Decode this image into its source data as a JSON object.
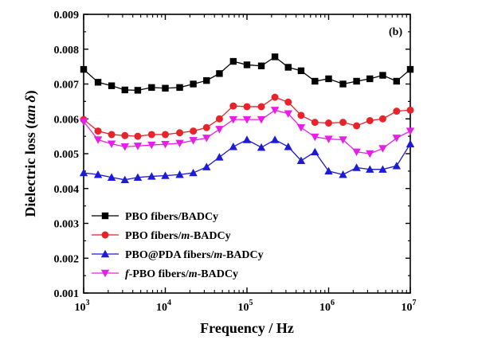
{
  "chart_data": {
    "type": "line",
    "panel_label": "(b)",
    "xlabel": "Frequency / Hz",
    "ylabel_main": "Dielectric loss (",
    "ylabel_italic": "tan",
    "ylabel_delta": "δ",
    "ylabel_close": ")",
    "xscale": "log",
    "xlim": [
      1000,
      10000000
    ],
    "ylim": [
      0.001,
      0.009
    ],
    "x_ticks": [
      {
        "base": "10",
        "exp": "3"
      },
      {
        "base": "10",
        "exp": "4"
      },
      {
        "base": "10",
        "exp": "5"
      },
      {
        "base": "10",
        "exp": "6"
      },
      {
        "base": "10",
        "exp": "7"
      }
    ],
    "y_ticks": [
      "0.001",
      "0.002",
      "0.003",
      "0.004",
      "0.005",
      "0.006",
      "0.007",
      "0.008",
      "0.009"
    ],
    "x": [
      1000,
      1500,
      2200,
      3200,
      4600,
      6800,
      10000,
      15000,
      22000,
      32000,
      46000,
      68000,
      100000,
      150000,
      220000,
      320000,
      460000,
      680000,
      1000000,
      1500000,
      2200000,
      3200000,
      4600000,
      6800000,
      10000000
    ],
    "series": [
      {
        "name_parts": [
          {
            "text": "PBO fibers/BADCy",
            "italic": false
          }
        ],
        "color": "#000000",
        "marker": "square",
        "values": [
          0.00742,
          0.00705,
          0.00695,
          0.00683,
          0.00682,
          0.0069,
          0.00688,
          0.0069,
          0.007,
          0.0071,
          0.0073,
          0.00765,
          0.00755,
          0.00752,
          0.00778,
          0.00748,
          0.00738,
          0.00708,
          0.00715,
          0.007,
          0.00708,
          0.00715,
          0.00725,
          0.00708,
          0.00742
        ]
      },
      {
        "name_parts": [
          {
            "text": "PBO fibers/",
            "italic": false
          },
          {
            "text": "m",
            "italic": true
          },
          {
            "text": "-BADCy",
            "italic": false
          }
        ],
        "color": "#e8232a",
        "marker": "circle",
        "values": [
          0.00598,
          0.00565,
          0.00555,
          0.00552,
          0.0055,
          0.00555,
          0.00555,
          0.0056,
          0.00565,
          0.00575,
          0.006,
          0.00637,
          0.00635,
          0.00635,
          0.00662,
          0.00648,
          0.0061,
          0.0059,
          0.00588,
          0.0059,
          0.0058,
          0.00595,
          0.006,
          0.00622,
          0.00625
        ]
      },
      {
        "name_parts": [
          {
            "text": "PBO@PDA fibers/",
            "italic": false
          },
          {
            "text": "m",
            "italic": true
          },
          {
            "text": "-BADCy",
            "italic": false
          }
        ],
        "color": "#1c1cd6",
        "marker": "triangle-up",
        "values": [
          0.00445,
          0.0044,
          0.00432,
          0.00425,
          0.00432,
          0.00435,
          0.00437,
          0.0044,
          0.00445,
          0.00462,
          0.0049,
          0.0052,
          0.0054,
          0.00518,
          0.0054,
          0.0052,
          0.0048,
          0.00505,
          0.0045,
          0.0044,
          0.0046,
          0.00455,
          0.00455,
          0.00465,
          0.00528
        ]
      },
      {
        "name_parts": [
          {
            "text": "f",
            "italic": true
          },
          {
            "text": "-PBO fibers/",
            "italic": false
          },
          {
            "text": "m",
            "italic": true
          },
          {
            "text": "-BADCy",
            "italic": false
          }
        ],
        "color": "#e81ee8",
        "marker": "triangle-down",
        "values": [
          0.00592,
          0.0054,
          0.00528,
          0.0052,
          0.00522,
          0.00525,
          0.00527,
          0.0053,
          0.00538,
          0.00545,
          0.0057,
          0.00598,
          0.00598,
          0.00598,
          0.00625,
          0.00615,
          0.00575,
          0.00548,
          0.00542,
          0.0054,
          0.00505,
          0.005,
          0.00515,
          0.00545,
          0.00565
        ]
      }
    ],
    "legend_position": "lower-left"
  }
}
